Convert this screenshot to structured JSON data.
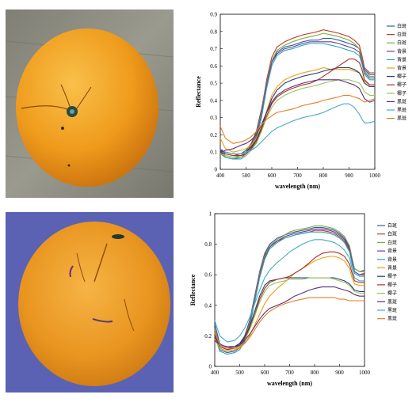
{
  "photos": [
    {
      "subject": "orange-stem-end",
      "background": "#8a8a82"
    },
    {
      "subject": "orange-side-bruised",
      "background": "#5a5fb0"
    }
  ],
  "chart_data": [
    {
      "type": "line",
      "xlabel": "wavelength (nm)",
      "ylabel": "Reflectance",
      "xlim": [
        400,
        1000
      ],
      "ylim": [
        0,
        0.9
      ],
      "xticks": [
        400,
        500,
        600,
        700,
        800,
        900,
        1000
      ],
      "yticks": [
        0,
        0.1,
        0.2,
        0.3,
        0.4,
        0.5,
        0.6,
        0.7,
        0.8,
        0.9
      ],
      "ytick_labels": [
        "0",
        "0.1",
        "0.2",
        "0.3",
        "0.4",
        "0.5",
        "0.6",
        "0.7",
        "0.8",
        "0.9"
      ],
      "grid": false,
      "legend_position": "right",
      "x": [
        400,
        420,
        450,
        480,
        500,
        520,
        540,
        560,
        580,
        600,
        620,
        650,
        680,
        700,
        720,
        750,
        780,
        800,
        830,
        860,
        880,
        900,
        920,
        940,
        950,
        960,
        980,
        1000
      ],
      "series": [
        {
          "name": "白斑",
          "color": "#2e5fa3",
          "values": [
            0.12,
            0.09,
            0.08,
            0.09,
            0.11,
            0.15,
            0.22,
            0.35,
            0.5,
            0.62,
            0.68,
            0.71,
            0.72,
            0.73,
            0.74,
            0.75,
            0.75,
            0.76,
            0.76,
            0.75,
            0.74,
            0.73,
            0.72,
            0.7,
            0.65,
            0.58,
            0.55,
            0.55
          ]
        },
        {
          "name": "白斑",
          "color": "#c0392b",
          "values": [
            0.11,
            0.08,
            0.07,
            0.08,
            0.1,
            0.14,
            0.21,
            0.34,
            0.52,
            0.65,
            0.71,
            0.74,
            0.76,
            0.77,
            0.78,
            0.79,
            0.8,
            0.81,
            0.8,
            0.79,
            0.78,
            0.77,
            0.75,
            0.72,
            0.66,
            0.59,
            0.56,
            0.56
          ]
        },
        {
          "name": "白斑",
          "color": "#7dab3a",
          "values": [
            0.1,
            0.08,
            0.07,
            0.08,
            0.1,
            0.13,
            0.2,
            0.33,
            0.5,
            0.63,
            0.69,
            0.72,
            0.74,
            0.75,
            0.76,
            0.77,
            0.78,
            0.79,
            0.78,
            0.77,
            0.76,
            0.75,
            0.73,
            0.7,
            0.64,
            0.57,
            0.54,
            0.54
          ]
        },
        {
          "name": "背景",
          "color": "#6a3d9a",
          "values": [
            0.1,
            0.07,
            0.06,
            0.07,
            0.09,
            0.12,
            0.19,
            0.32,
            0.49,
            0.62,
            0.67,
            0.7,
            0.71,
            0.72,
            0.73,
            0.74,
            0.74,
            0.74,
            0.74,
            0.73,
            0.72,
            0.71,
            0.7,
            0.68,
            0.63,
            0.56,
            0.53,
            0.53
          ]
        },
        {
          "name": "背景",
          "color": "#2aa4b8",
          "values": [
            0.09,
            0.07,
            0.06,
            0.06,
            0.08,
            0.11,
            0.18,
            0.3,
            0.47,
            0.6,
            0.66,
            0.69,
            0.7,
            0.71,
            0.72,
            0.73,
            0.73,
            0.73,
            0.72,
            0.71,
            0.7,
            0.69,
            0.68,
            0.66,
            0.61,
            0.55,
            0.52,
            0.52
          ]
        },
        {
          "name": "背景",
          "color": "#f39c12",
          "values": [
            0.18,
            0.12,
            0.1,
            0.11,
            0.12,
            0.14,
            0.18,
            0.25,
            0.34,
            0.43,
            0.48,
            0.52,
            0.54,
            0.55,
            0.56,
            0.57,
            0.58,
            0.59,
            0.58,
            0.58,
            0.58,
            0.58,
            0.57,
            0.56,
            0.54,
            0.51,
            0.49,
            0.49
          ]
        },
        {
          "name": "椰子",
          "color": "#1f3f73",
          "values": [
            0.11,
            0.1,
            0.09,
            0.09,
            0.1,
            0.13,
            0.17,
            0.24,
            0.33,
            0.41,
            0.46,
            0.5,
            0.52,
            0.53,
            0.54,
            0.55,
            0.56,
            0.57,
            0.58,
            0.59,
            0.59,
            0.59,
            0.58,
            0.56,
            0.53,
            0.5,
            0.48,
            0.48
          ]
        },
        {
          "name": "椰子",
          "color": "#a93226",
          "values": [
            0.1,
            0.09,
            0.08,
            0.08,
            0.09,
            0.12,
            0.16,
            0.23,
            0.31,
            0.38,
            0.42,
            0.45,
            0.47,
            0.48,
            0.49,
            0.5,
            0.52,
            0.54,
            0.57,
            0.6,
            0.62,
            0.64,
            0.64,
            0.62,
            0.58,
            0.52,
            0.49,
            0.49
          ]
        },
        {
          "name": "椰子",
          "color": "#9bc25b",
          "values": [
            0.09,
            0.08,
            0.07,
            0.07,
            0.08,
            0.11,
            0.15,
            0.22,
            0.3,
            0.36,
            0.4,
            0.43,
            0.45,
            0.46,
            0.47,
            0.48,
            0.49,
            0.5,
            0.51,
            0.52,
            0.52,
            0.52,
            0.51,
            0.5,
            0.48,
            0.45,
            0.43,
            0.43
          ]
        },
        {
          "name": "黑斑",
          "color": "#5b2c83",
          "values": [
            0.1,
            0.11,
            0.12,
            0.14,
            0.15,
            0.17,
            0.2,
            0.26,
            0.33,
            0.39,
            0.43,
            0.46,
            0.48,
            0.49,
            0.5,
            0.51,
            0.52,
            0.52,
            0.52,
            0.52,
            0.51,
            0.5,
            0.49,
            0.47,
            0.44,
            0.41,
            0.39,
            0.4
          ]
        },
        {
          "name": "黑斑",
          "color": "#48a9c5",
          "values": [
            0.12,
            0.1,
            0.09,
            0.09,
            0.1,
            0.11,
            0.13,
            0.16,
            0.19,
            0.22,
            0.24,
            0.26,
            0.28,
            0.29,
            0.3,
            0.31,
            0.32,
            0.33,
            0.35,
            0.37,
            0.38,
            0.38,
            0.36,
            0.32,
            0.29,
            0.27,
            0.27,
            0.28
          ]
        },
        {
          "name": "黑斑",
          "color": "#e67e22",
          "values": [
            0.25,
            0.18,
            0.15,
            0.16,
            0.17,
            0.19,
            0.22,
            0.26,
            0.29,
            0.31,
            0.33,
            0.34,
            0.35,
            0.36,
            0.37,
            0.38,
            0.39,
            0.4,
            0.41,
            0.42,
            0.43,
            0.43,
            0.42,
            0.41,
            0.4,
            0.39,
            0.4,
            0.41
          ]
        }
      ]
    },
    {
      "type": "line",
      "xlabel": "wavelength (nm)",
      "ylabel": "Reflectance",
      "xlim": [
        400,
        1000
      ],
      "ylim": [
        0,
        1
      ],
      "xticks": [
        400,
        500,
        600,
        700,
        800,
        900,
        1000
      ],
      "yticks": [
        0,
        0.2,
        0.4,
        0.6,
        0.8,
        1
      ],
      "ytick_labels": [
        "0",
        "0.2",
        "0.4",
        "0.6",
        "0.8",
        "1"
      ],
      "grid": false,
      "legend_position": "right",
      "x": [
        400,
        420,
        450,
        480,
        500,
        520,
        540,
        560,
        580,
        600,
        620,
        650,
        680,
        700,
        720,
        750,
        780,
        800,
        830,
        860,
        880,
        900,
        920,
        940,
        950,
        960,
        980,
        1000
      ],
      "series": [
        {
          "name": "白斑",
          "color": "#2e5fa3",
          "values": [
            0.28,
            0.15,
            0.12,
            0.13,
            0.15,
            0.2,
            0.3,
            0.46,
            0.62,
            0.74,
            0.8,
            0.84,
            0.86,
            0.87,
            0.88,
            0.89,
            0.9,
            0.91,
            0.91,
            0.9,
            0.89,
            0.87,
            0.84,
            0.78,
            0.7,
            0.64,
            0.62,
            0.63
          ]
        },
        {
          "name": "白斑",
          "color": "#c0392b",
          "values": [
            0.25,
            0.13,
            0.11,
            0.12,
            0.14,
            0.19,
            0.29,
            0.45,
            0.61,
            0.73,
            0.79,
            0.82,
            0.84,
            0.85,
            0.86,
            0.87,
            0.88,
            0.89,
            0.89,
            0.88,
            0.87,
            0.85,
            0.82,
            0.76,
            0.68,
            0.62,
            0.6,
            0.61
          ]
        },
        {
          "name": "白斑",
          "color": "#7dab3a",
          "values": [
            0.24,
            0.12,
            0.1,
            0.11,
            0.13,
            0.18,
            0.28,
            0.44,
            0.6,
            0.72,
            0.79,
            0.83,
            0.86,
            0.88,
            0.89,
            0.9,
            0.91,
            0.92,
            0.92,
            0.91,
            0.9,
            0.88,
            0.85,
            0.79,
            0.71,
            0.64,
            0.62,
            0.62
          ]
        },
        {
          "name": "背景",
          "color": "#6a3d9a",
          "values": [
            0.22,
            0.11,
            0.09,
            0.1,
            0.12,
            0.17,
            0.27,
            0.43,
            0.59,
            0.71,
            0.78,
            0.82,
            0.85,
            0.86,
            0.87,
            0.88,
            0.89,
            0.9,
            0.9,
            0.89,
            0.88,
            0.86,
            0.83,
            0.77,
            0.69,
            0.62,
            0.6,
            0.6
          ]
        },
        {
          "name": "背景",
          "color": "#2aa4b8",
          "values": [
            0.2,
            0.1,
            0.08,
            0.09,
            0.11,
            0.16,
            0.26,
            0.42,
            0.58,
            0.7,
            0.77,
            0.81,
            0.84,
            0.85,
            0.86,
            0.87,
            0.88,
            0.88,
            0.88,
            0.87,
            0.86,
            0.84,
            0.81,
            0.75,
            0.67,
            0.61,
            0.59,
            0.59
          ]
        },
        {
          "name": "背景",
          "color": "#f39c12",
          "values": [
            0.18,
            0.12,
            0.1,
            0.11,
            0.12,
            0.15,
            0.2,
            0.27,
            0.34,
            0.41,
            0.46,
            0.51,
            0.55,
            0.58,
            0.61,
            0.64,
            0.67,
            0.69,
            0.71,
            0.72,
            0.72,
            0.71,
            0.69,
            0.64,
            0.58,
            0.54,
            0.53,
            0.53
          ]
        },
        {
          "name": "椰子",
          "color": "#1f3f73",
          "values": [
            0.2,
            0.14,
            0.12,
            0.13,
            0.15,
            0.19,
            0.26,
            0.36,
            0.46,
            0.53,
            0.56,
            0.57,
            0.58,
            0.58,
            0.58,
            0.58,
            0.58,
            0.58,
            0.58,
            0.58,
            0.58,
            0.57,
            0.56,
            0.54,
            0.52,
            0.5,
            0.49,
            0.49
          ]
        },
        {
          "name": "椰子",
          "color": "#a93226",
          "values": [
            0.19,
            0.13,
            0.11,
            0.12,
            0.14,
            0.18,
            0.25,
            0.34,
            0.44,
            0.51,
            0.55,
            0.57,
            0.58,
            0.59,
            0.61,
            0.64,
            0.68,
            0.71,
            0.74,
            0.75,
            0.75,
            0.74,
            0.72,
            0.67,
            0.61,
            0.56,
            0.55,
            0.55
          ]
        },
        {
          "name": "椰子",
          "color": "#9bc25b",
          "values": [
            0.18,
            0.12,
            0.1,
            0.11,
            0.13,
            0.17,
            0.24,
            0.33,
            0.42,
            0.49,
            0.53,
            0.55,
            0.56,
            0.57,
            0.57,
            0.57,
            0.58,
            0.58,
            0.58,
            0.58,
            0.57,
            0.56,
            0.55,
            0.53,
            0.51,
            0.49,
            0.48,
            0.48
          ]
        },
        {
          "name": "黑斑",
          "color": "#5b2c83",
          "values": [
            0.17,
            0.14,
            0.13,
            0.13,
            0.14,
            0.17,
            0.21,
            0.26,
            0.31,
            0.35,
            0.38,
            0.4,
            0.42,
            0.44,
            0.46,
            0.48,
            0.5,
            0.51,
            0.52,
            0.52,
            0.52,
            0.51,
            0.5,
            0.49,
            0.48,
            0.47,
            0.46,
            0.46
          ]
        },
        {
          "name": "黑斑",
          "color": "#48a9c5",
          "values": [
            0.3,
            0.2,
            0.16,
            0.17,
            0.2,
            0.25,
            0.32,
            0.41,
            0.5,
            0.58,
            0.63,
            0.68,
            0.72,
            0.75,
            0.77,
            0.8,
            0.82,
            0.83,
            0.83,
            0.82,
            0.81,
            0.79,
            0.76,
            0.71,
            0.64,
            0.58,
            0.56,
            0.56
          ]
        },
        {
          "name": "黑斑",
          "color": "#e67e22",
          "values": [
            0.22,
            0.14,
            0.12,
            0.12,
            0.13,
            0.15,
            0.19,
            0.24,
            0.29,
            0.33,
            0.36,
            0.39,
            0.41,
            0.42,
            0.43,
            0.44,
            0.45,
            0.45,
            0.45,
            0.45,
            0.45,
            0.44,
            0.44,
            0.43,
            0.43,
            0.43,
            0.43,
            0.43
          ]
        }
      ]
    }
  ]
}
